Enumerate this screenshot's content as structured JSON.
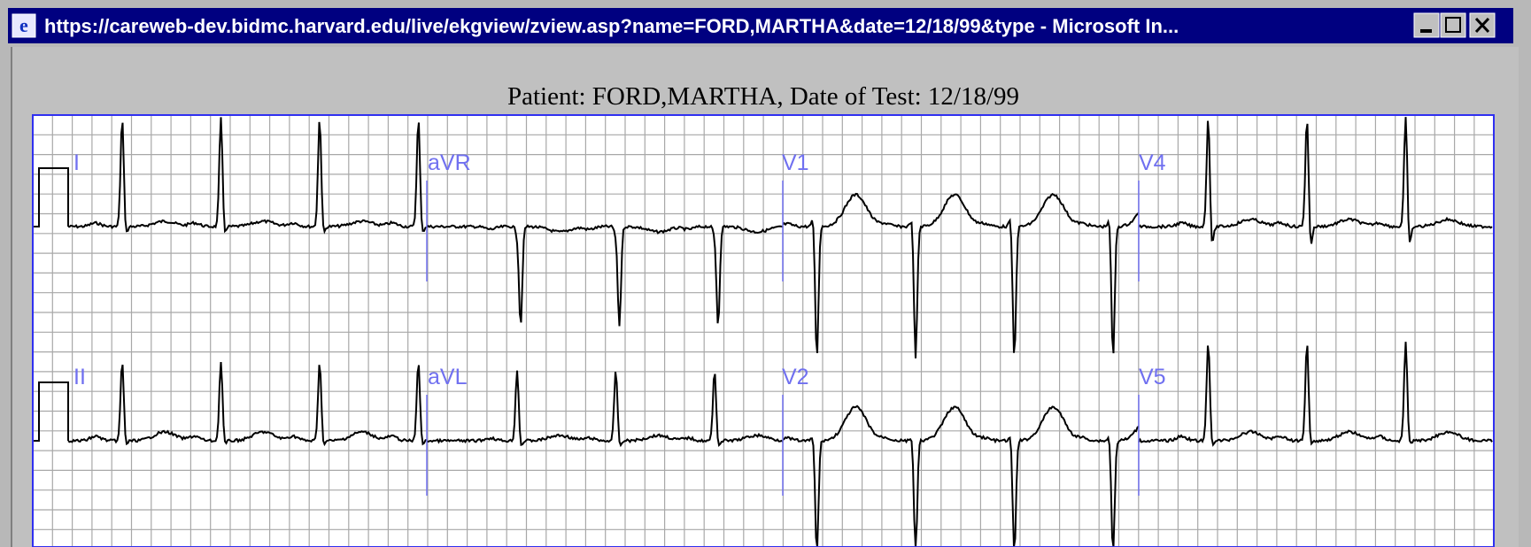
{
  "window": {
    "title": "https://careweb-dev.bidmc.harvard.edu/live/ekgview/zview.asp?name=FORD,MARTHA&date=12/18/99&type - Microsoft In..."
  },
  "header": {
    "text": "Patient: FORD,MARTHA, Date of Test: 12/18/99"
  },
  "leads": [
    [
      "I",
      "aVR",
      "V1",
      "V4"
    ],
    [
      "II",
      "aVL",
      "V2",
      "V5"
    ]
  ]
}
